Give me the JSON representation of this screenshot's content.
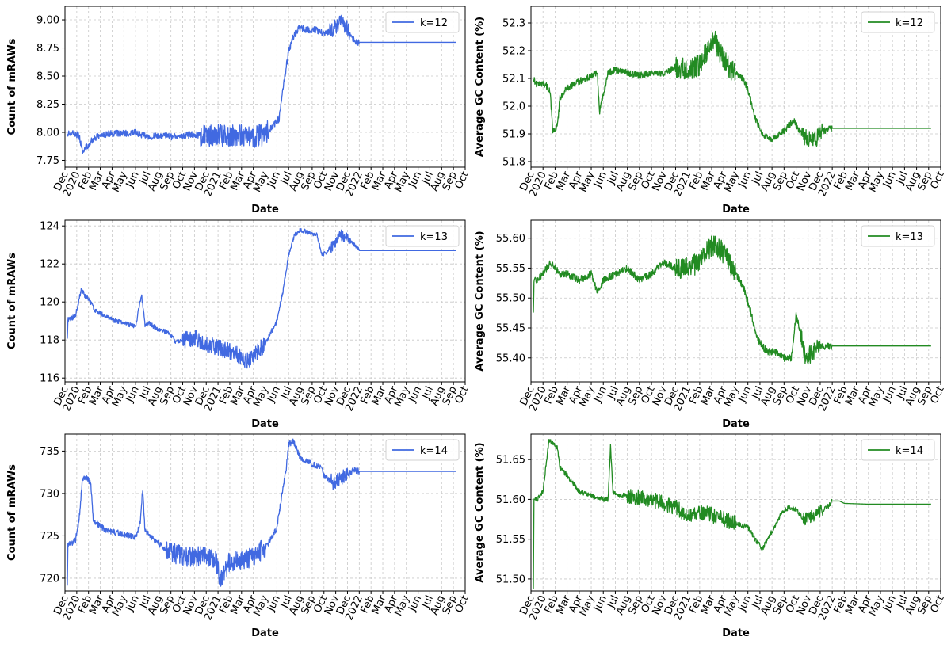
{
  "chart_data": [
    {
      "type": "line",
      "id": "mraw-k12",
      "xlabel": "Date",
      "ylabel": "Count of mRAWs",
      "color": "#4169E1",
      "x_ticks": [
        "Dec",
        "2020",
        "Feb",
        "Mar",
        "Apr",
        "May",
        "Jun",
        "Jul",
        "Aug",
        "Sep",
        "Oct",
        "Nov",
        "Dec",
        "2021",
        "Feb",
        "Mar",
        "Apr",
        "May",
        "Jun",
        "Jul",
        "Aug",
        "Sep",
        "Oct",
        "Nov",
        "Dec",
        "2022",
        "Feb",
        "Mar",
        "Apr",
        "May",
        "Jun",
        "Jul",
        "Aug",
        "Sep",
        "Oct"
      ],
      "xlim": [
        0,
        34
      ],
      "y_ticks": [
        "7.75",
        "8.00",
        "8.25",
        "8.50",
        "8.75",
        "9.00"
      ],
      "ylim": [
        7.69,
        9.12
      ],
      "grid": true,
      "legend_position": "top-right",
      "series": [
        {
          "name": "k=12",
          "noise": 0.03,
          "noisy_ranges": [
            [
              11.5,
              17.5,
              0.1
            ],
            [
              22.5,
              24.2,
              0.07
            ]
          ],
          "x": [
            0.2,
            0.6,
            1.2,
            1.5,
            1.9,
            2.3,
            2.7,
            3.2,
            4,
            5,
            6,
            7,
            8,
            9,
            10,
            11,
            12,
            13,
            14,
            15,
            16,
            17,
            17.6,
            18.2,
            18.6,
            19,
            19.4,
            19.8,
            20.3,
            20.8,
            21.3,
            22,
            22.6,
            23.2,
            23.6,
            24,
            24.4,
            24.8,
            25.2,
            25.6,
            26,
            28,
            30,
            32,
            33.2
          ],
          "y": [
            7.99,
            8.0,
            7.97,
            7.83,
            7.88,
            7.93,
            7.96,
            7.98,
            7.99,
            7.99,
            8.0,
            7.96,
            7.97,
            7.96,
            7.97,
            7.98,
            7.97,
            7.98,
            7.97,
            7.98,
            7.96,
            7.98,
            8.05,
            8.12,
            8.45,
            8.72,
            8.85,
            8.92,
            8.92,
            8.91,
            8.91,
            8.88,
            8.9,
            8.96,
            8.98,
            8.92,
            8.84,
            8.8,
            8.8,
            8.8,
            8.8,
            8.8,
            8.8,
            8.8,
            8.8
          ]
        }
      ]
    },
    {
      "type": "line",
      "id": "gc-k12",
      "xlabel": "Date",
      "ylabel": "Average GC Content (%)",
      "color": "#228B22",
      "x_ticks": [
        "Dec",
        "2020",
        "Feb",
        "Mar",
        "Apr",
        "May",
        "Jun",
        "Jul",
        "Aug",
        "Sep",
        "Oct",
        "Nov",
        "Dec",
        "2021",
        "Feb",
        "Mar",
        "Apr",
        "May",
        "Jun",
        "Jul",
        "Aug",
        "Sep",
        "Oct",
        "Nov",
        "Dec",
        "2022",
        "Feb",
        "Mar",
        "Apr",
        "May",
        "Jun",
        "Jul",
        "Aug",
        "Sep",
        "Oct"
      ],
      "xlim": [
        0,
        34
      ],
      "y_ticks": [
        "51.8",
        "51.9",
        "52.0",
        "52.1",
        "52.2",
        "52.3"
      ],
      "ylim": [
        51.78,
        52.36
      ],
      "grid": true,
      "legend_position": "top-right",
      "series": [
        {
          "name": "k=12",
          "noise": 0.012,
          "noisy_ranges": [
            [
              12,
              17,
              0.04
            ],
            [
              22.5,
              24.2,
              0.03
            ]
          ],
          "x": [
            0.2,
            0.4,
            1.2,
            1.6,
            1.8,
            2.2,
            2.4,
            2.9,
            3.6,
            4.5,
            5.5,
            5.7,
            6.4,
            7,
            8,
            9,
            10,
            11,
            12,
            13,
            14,
            14.6,
            15.2,
            15.6,
            16.2,
            17,
            17.6,
            18,
            18.6,
            19.2,
            20,
            21,
            21.8,
            22.4,
            23,
            23.6,
            24.2,
            25,
            26,
            28,
            30,
            32,
            33.2
          ],
          "y": [
            52.1,
            52.08,
            52.08,
            52.05,
            51.91,
            51.93,
            52.03,
            52.06,
            52.08,
            52.1,
            52.12,
            51.98,
            52.12,
            52.13,
            52.12,
            52.11,
            52.12,
            52.12,
            52.14,
            52.13,
            52.15,
            52.2,
            52.24,
            52.2,
            52.15,
            52.12,
            52.1,
            52.06,
            51.96,
            51.9,
            51.88,
            51.91,
            51.95,
            51.9,
            51.88,
            51.88,
            51.91,
            51.92,
            51.92,
            51.92,
            51.92,
            51.92,
            51.92
          ]
        }
      ]
    },
    {
      "type": "line",
      "id": "mraw-k13",
      "xlabel": "Date",
      "ylabel": "Count of mRAWs",
      "color": "#4169E1",
      "x_ticks": [
        "Dec",
        "2020",
        "Feb",
        "Mar",
        "Apr",
        "May",
        "Jun",
        "Jul",
        "Aug",
        "Sep",
        "Oct",
        "Nov",
        "Dec",
        "2021",
        "Feb",
        "Mar",
        "Apr",
        "May",
        "Jun",
        "Jul",
        "Aug",
        "Sep",
        "Oct",
        "Nov",
        "Dec",
        "2022",
        "Feb",
        "Mar",
        "Apr",
        "May",
        "Jun",
        "Jul",
        "Aug",
        "Sep",
        "Oct"
      ],
      "xlim": [
        0,
        34
      ],
      "y_ticks": [
        "116",
        "118",
        "120",
        "122",
        "124"
      ],
      "ylim": [
        115.8,
        124.3
      ],
      "grid": true,
      "legend_position": "top-right",
      "series": [
        {
          "name": "k=13",
          "noise": 0.12,
          "noisy_ranges": [
            [
              10,
              17,
              0.45
            ],
            [
              22.5,
              24.2,
              0.3
            ]
          ],
          "x": [
            0.2,
            0.25,
            0.5,
            0.9,
            1.4,
            1.7,
            2.1,
            2.5,
            3,
            3.6,
            4.2,
            5,
            6,
            6.5,
            6.8,
            7.1,
            8,
            8.8,
            9.4,
            10,
            11,
            12,
            13,
            14,
            15,
            15.5,
            16,
            17,
            17.5,
            18,
            18.5,
            19,
            19.5,
            20,
            20.5,
            21,
            21.4,
            21.8,
            22.2,
            22.8,
            23.4,
            24,
            24.6,
            25,
            26,
            28,
            30,
            32,
            33.2
          ],
          "y": [
            118.0,
            119.1,
            119.1,
            119.3,
            120.7,
            120.3,
            120.1,
            119.6,
            119.4,
            119.2,
            119.0,
            118.9,
            118.7,
            120.4,
            118.8,
            118.9,
            118.5,
            118.4,
            117.9,
            118.0,
            118.1,
            117.8,
            117.6,
            117.4,
            117.1,
            116.9,
            117.1,
            117.8,
            118.4,
            119.0,
            120.5,
            122.5,
            123.5,
            123.8,
            123.7,
            123.6,
            123.6,
            122.5,
            122.6,
            123.0,
            123.5,
            123.4,
            123.0,
            122.7,
            122.7,
            122.7,
            122.7,
            122.7,
            122.7
          ]
        }
      ]
    },
    {
      "type": "line",
      "id": "gc-k13",
      "xlabel": "Date",
      "ylabel": "Average GC Content (%)",
      "color": "#228B22",
      "x_ticks": [
        "Dec",
        "2020",
        "Feb",
        "Mar",
        "Apr",
        "May",
        "Jun",
        "Jul",
        "Aug",
        "Sep",
        "Oct",
        "Nov",
        "Dec",
        "2021",
        "Feb",
        "Mar",
        "Apr",
        "May",
        "Jun",
        "Jul",
        "Aug",
        "Sep",
        "Oct",
        "Nov",
        "Dec",
        "2022",
        "Feb",
        "Mar",
        "Apr",
        "May",
        "Jun",
        "Jul",
        "Aug",
        "Sep",
        "Oct"
      ],
      "xlim": [
        0,
        34
      ],
      "y_ticks": [
        "55.40",
        "55.45",
        "55.50",
        "55.55",
        "55.60"
      ],
      "ylim": [
        55.36,
        55.63
      ],
      "grid": true,
      "legend_position": "top-right",
      "series": [
        {
          "name": "k=13",
          "noise": 0.006,
          "noisy_ranges": [
            [
              12,
              17,
              0.018
            ],
            [
              22.3,
              24,
              0.015
            ]
          ],
          "x": [
            0.2,
            0.25,
            0.5,
            1,
            1.6,
            2,
            2.4,
            3,
            4,
            5,
            5.5,
            6,
            7,
            8,
            9,
            10,
            11,
            12,
            13,
            14,
            14.6,
            15.2,
            15.8,
            16.4,
            17,
            17.6,
            18.2,
            18.8,
            19.6,
            20.4,
            21,
            21.6,
            22,
            22.4,
            22.8,
            23.4,
            24,
            24.6,
            25,
            26,
            28,
            30,
            32,
            33.2
          ],
          "y": [
            55.47,
            55.53,
            55.53,
            55.54,
            55.56,
            55.55,
            55.54,
            55.54,
            55.53,
            55.54,
            55.51,
            55.53,
            55.54,
            55.55,
            55.53,
            55.54,
            55.56,
            55.55,
            55.55,
            55.56,
            55.58,
            55.59,
            55.58,
            55.56,
            55.54,
            55.52,
            55.48,
            55.43,
            55.41,
            55.41,
            55.4,
            55.4,
            55.47,
            55.44,
            55.4,
            55.41,
            55.42,
            55.42,
            55.42,
            55.42,
            55.42,
            55.42,
            55.42,
            55.42
          ]
        }
      ]
    },
    {
      "type": "line",
      "id": "mraw-k14",
      "xlabel": "Date",
      "ylabel": "Count of mRAWs",
      "color": "#4169E1",
      "x_ticks": [
        "Dec",
        "2020",
        "Feb",
        "Mar",
        "Apr",
        "May",
        "Jun",
        "Jul",
        "Aug",
        "Sep",
        "Oct",
        "Nov",
        "Dec",
        "2021",
        "Feb",
        "Mar",
        "Apr",
        "May",
        "Jun",
        "Jul",
        "Aug",
        "Sep",
        "Oct",
        "Nov",
        "Dec",
        "2022",
        "Feb",
        "Mar",
        "Apr",
        "May",
        "Jun",
        "Jul",
        "Aug",
        "Sep",
        "Oct"
      ],
      "xlim": [
        0,
        34
      ],
      "y_ticks": [
        "720",
        "725",
        "730",
        "735"
      ],
      "ylim": [
        718.5,
        737.0
      ],
      "grid": true,
      "legend_position": "top-right",
      "series": [
        {
          "name": "k=14",
          "noise": 0.35,
          "noisy_ranges": [
            [
              8.5,
              17,
              1.2
            ],
            [
              22.6,
              24.2,
              0.9
            ]
          ],
          "x": [
            0.2,
            0.25,
            0.5,
            0.9,
            1.2,
            1.5,
            1.9,
            2.2,
            2.4,
            2.6,
            2.9,
            3.3,
            4,
            5,
            6,
            6.4,
            6.6,
            6.8,
            7.1,
            8,
            9,
            10,
            11,
            12,
            12.8,
            13.2,
            14,
            15,
            16,
            17,
            17.6,
            18,
            18.4,
            18.8,
            19,
            19.4,
            20,
            21,
            21.6,
            22.2,
            22.8,
            23.4,
            24,
            24.6,
            25,
            26,
            28,
            30,
            32,
            33.2
          ],
          "y": [
            719.3,
            724.0,
            724.1,
            724.5,
            727.0,
            731.8,
            731.8,
            731.0,
            727.0,
            726.5,
            726.3,
            725.8,
            725.5,
            725.2,
            724.8,
            726.5,
            730.6,
            725.5,
            725.2,
            724.0,
            723.0,
            722.6,
            722.5,
            722.6,
            722.4,
            719.5,
            722.0,
            722.0,
            722.6,
            723.6,
            724.8,
            726.0,
            729.5,
            733.0,
            735.8,
            736.2,
            734.2,
            733.4,
            733.2,
            731.8,
            731.3,
            731.8,
            732.3,
            732.8,
            732.6,
            732.6,
            732.6,
            732.6,
            732.6,
            732.6
          ]
        }
      ]
    },
    {
      "type": "line",
      "id": "gc-k14",
      "xlabel": "Date",
      "ylabel": "Average GC Content (%)",
      "color": "#228B22",
      "x_ticks": [
        "Dec",
        "2020",
        "Feb",
        "Mar",
        "Apr",
        "May",
        "Jun",
        "Jul",
        "Aug",
        "Sep",
        "Oct",
        "Nov",
        "Dec",
        "2021",
        "Feb",
        "Mar",
        "Apr",
        "May",
        "Jun",
        "Jul",
        "Aug",
        "Sep",
        "Oct",
        "Nov",
        "Dec",
        "2022",
        "Feb",
        "Mar",
        "Apr",
        "May",
        "Jun",
        "Jul",
        "Aug",
        "Sep",
        "Oct"
      ],
      "xlim": [
        0,
        34
      ],
      "y_ticks": [
        "51.50",
        "51.55",
        "51.60",
        "51.65"
      ],
      "ylim": [
        51.485,
        51.682
      ],
      "grid": true,
      "legend_position": "top-right",
      "series": [
        {
          "name": "k=14",
          "noise": 0.003,
          "noisy_ranges": [
            [
              8,
              17,
              0.01
            ],
            [
              22.6,
              24.2,
              0.008
            ]
          ],
          "x": [
            0.2,
            0.25,
            0.5,
            1,
            1.5,
            1.8,
            2.2,
            2.4,
            3,
            4,
            5,
            6,
            6.4,
            6.6,
            6.8,
            7.2,
            8,
            9,
            10,
            11,
            12,
            13,
            14,
            15,
            16,
            17,
            18,
            18.6,
            19.2,
            20,
            20.8,
            21.4,
            22,
            22.6,
            23.2,
            24,
            24.6,
            25,
            25.6,
            26,
            28,
            30,
            32,
            33.2
          ],
          "y": [
            51.49,
            51.6,
            51.6,
            51.61,
            51.675,
            51.67,
            51.665,
            51.64,
            51.63,
            51.61,
            51.605,
            51.6,
            51.6,
            51.668,
            51.61,
            51.605,
            51.605,
            51.603,
            51.6,
            51.595,
            51.59,
            51.58,
            51.585,
            51.58,
            51.575,
            51.57,
            51.565,
            51.55,
            51.538,
            51.56,
            51.583,
            51.59,
            51.588,
            51.575,
            51.578,
            51.585,
            51.59,
            51.598,
            51.598,
            51.595,
            51.594,
            51.594,
            51.594,
            51.594
          ]
        }
      ]
    }
  ]
}
